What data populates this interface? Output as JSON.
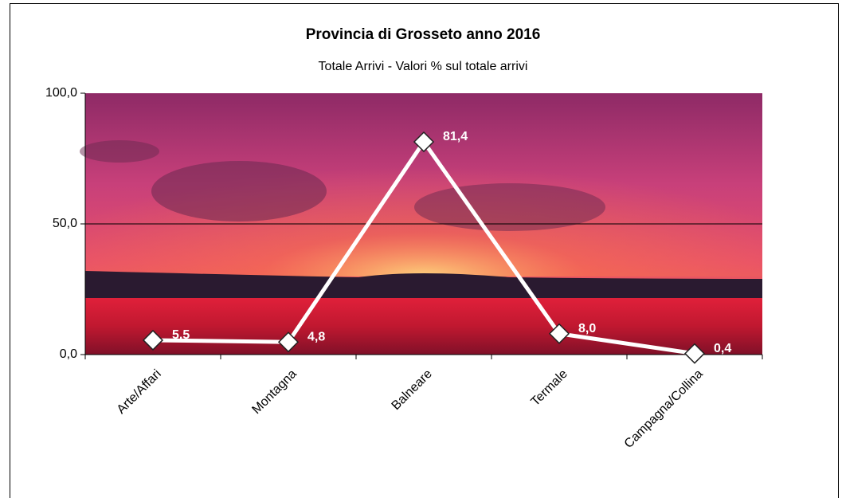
{
  "chart_data": {
    "type": "line",
    "title": "Provincia di Grosseto anno 2016",
    "subtitle": "Totale Arrivi  - Valori % sul totale arrivi",
    "categories": [
      "Arte/Affari",
      "Montagna",
      "Balneare",
      "Termale",
      "Campagna/Collina"
    ],
    "series": [
      {
        "color": "#ffffff",
        "values": [
          5.5,
          4.8,
          81.4,
          8.0,
          0.4
        ],
        "value_labels": [
          "5,5",
          "4,8",
          "81,4",
          "8,0",
          "0,4"
        ]
      }
    ],
    "ylim": [
      0,
      100
    ],
    "yticks": [
      {
        "value": 0,
        "label": "0,0"
      },
      {
        "value": 50,
        "label": "50,0"
      },
      {
        "value": 100,
        "label": "100,0"
      }
    ],
    "grid": true
  }
}
